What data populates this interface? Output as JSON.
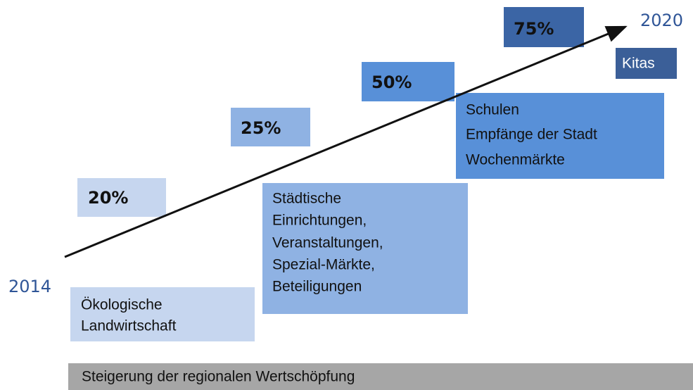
{
  "start_year": "2014",
  "end_year": "2020",
  "steps": [
    {
      "percent": "20%",
      "lines": [
        "Ökologische",
        "Landwirtschaft"
      ]
    },
    {
      "percent": "25%",
      "lines": [
        "Städtische",
        "Einrichtungen,",
        "Veranstaltungen,",
        "Spezial-Märkte,",
        "Beteiligungen"
      ]
    },
    {
      "percent": "50%",
      "lines": [
        "Schulen",
        "Empfänge der Stadt",
        "Wochenmärkte"
      ]
    },
    {
      "percent": "75%",
      "lines": [
        "Kitas"
      ]
    }
  ],
  "footer": "Steigerung der regionalen Wertschöpfung"
}
